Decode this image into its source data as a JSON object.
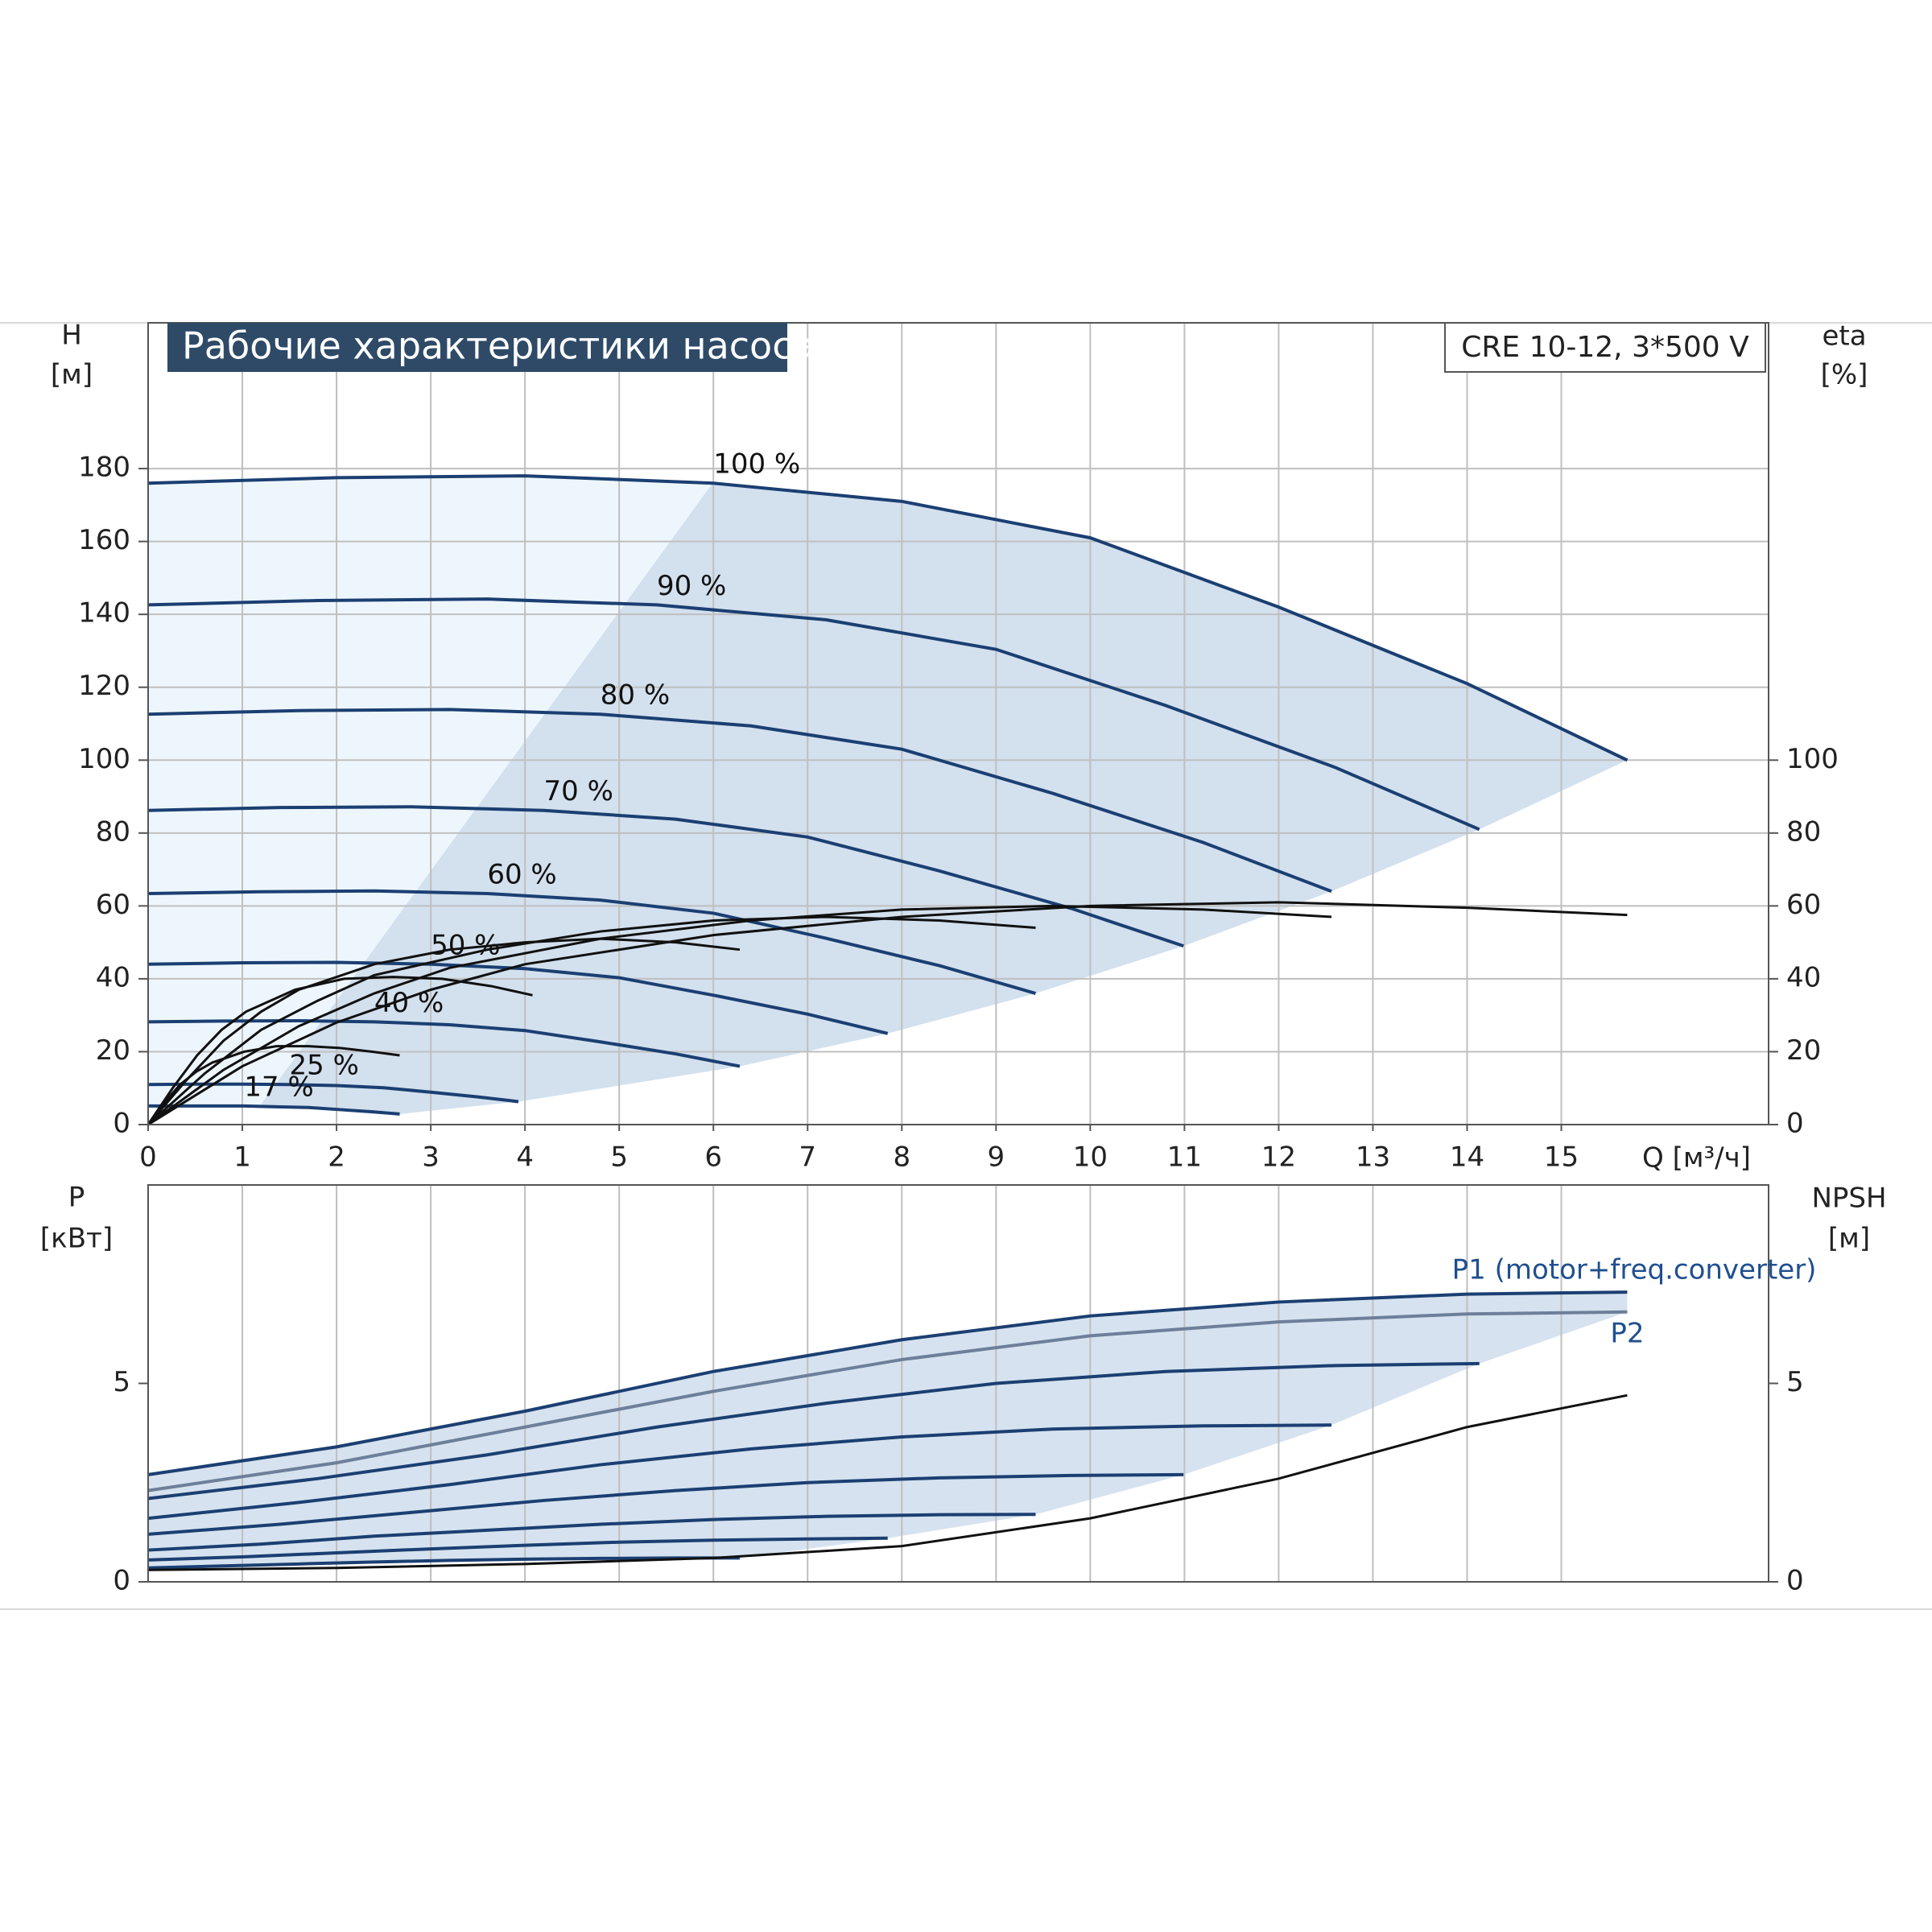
{
  "chart_data": [
    {
      "type": "line",
      "title": "Рабочие характеристики насоса",
      "subtitle": "CRE 10-12, 3*500 V",
      "xlabel": "Q [м³/ч]",
      "ylabel": "H",
      "yunit": "[м]",
      "y2label": "eta",
      "y2unit": "[%]",
      "xlim": [
        0,
        17.2
      ],
      "xticks": [
        0,
        1,
        2,
        3,
        4,
        5,
        6,
        7,
        8,
        9,
        10,
        11,
        12,
        13,
        14,
        15
      ],
      "ylim": [
        0,
        220
      ],
      "yticks": [
        0,
        20,
        40,
        60,
        80,
        100,
        120,
        140,
        160,
        180
      ],
      "y2lim": [
        0,
        220
      ],
      "y2ticks": [
        0,
        20,
        40,
        60,
        80,
        100
      ],
      "grid": true,
      "series": [
        {
          "name": "100 %",
          "color": "#1b3f72",
          "x": [
            0,
            2,
            4,
            6,
            8,
            10,
            12,
            14,
            15.7
          ],
          "values": [
            176,
            177.5,
            178,
            176,
            171,
            161,
            142,
            121,
            100
          ]
        },
        {
          "name": "90 %",
          "color": "#1b3f72",
          "x": [
            0,
            1.8,
            3.6,
            5.4,
            7.2,
            9,
            10.8,
            12.6,
            14.13
          ],
          "values": [
            142.6,
            143.8,
            144.2,
            142.6,
            138.5,
            130.4,
            115,
            98,
            81
          ]
        },
        {
          "name": "80 %",
          "color": "#1b3f72",
          "x": [
            0,
            1.6,
            3.2,
            4.8,
            6.4,
            8,
            9.6,
            11.2,
            12.56
          ],
          "values": [
            112.6,
            113.6,
            113.9,
            112.6,
            109.4,
            103,
            90.9,
            77.4,
            64
          ]
        },
        {
          "name": "70 %",
          "color": "#1b3f72",
          "x": [
            0,
            1.4,
            2.8,
            4.2,
            5.6,
            7,
            8.4,
            9.8,
            10.99
          ],
          "values": [
            86.2,
            87,
            87.2,
            86.2,
            83.8,
            78.9,
            69.6,
            59.3,
            49
          ]
        },
        {
          "name": "60 %",
          "color": "#1b3f72",
          "x": [
            0,
            1.2,
            2.4,
            3.6,
            4.8,
            6,
            7.2,
            8.4,
            9.42
          ],
          "values": [
            63.4,
            63.9,
            64.1,
            63.4,
            61.6,
            58,
            51.1,
            43.6,
            36
          ]
        },
        {
          "name": "50 %",
          "color": "#1b3f72",
          "x": [
            0,
            1,
            2,
            3,
            4,
            5,
            6,
            7,
            7.85
          ],
          "values": [
            44,
            44.4,
            44.5,
            44,
            42.8,
            40.3,
            35.5,
            30.3,
            25
          ]
        },
        {
          "name": "40 %",
          "color": "#1b3f72",
          "x": [
            0,
            0.8,
            1.6,
            2.4,
            3.2,
            4,
            4.8,
            5.6,
            6.28
          ],
          "values": [
            28.2,
            28.4,
            28.5,
            28.2,
            27.4,
            25.8,
            22.7,
            19.4,
            16
          ]
        },
        {
          "name": "25 %",
          "color": "#1b3f72",
          "x": [
            0,
            0.5,
            1,
            1.5,
            2,
            2.5,
            3,
            3.5,
            3.93
          ],
          "values": [
            11,
            11.1,
            11.1,
            11,
            10.7,
            10.1,
            8.9,
            7.6,
            6.3
          ]
        },
        {
          "name": "17 %",
          "color": "#1b3f72",
          "x": [
            0,
            0.34,
            0.68,
            1.02,
            1.36,
            1.7,
            2.04,
            2.38,
            2.67
          ],
          "values": [
            5.1,
            5.1,
            5.1,
            5.1,
            4.9,
            4.7,
            4.1,
            3.5,
            2.9
          ]
        },
        {
          "color": "#111111",
          "axis": "y2",
          "x": [
            0,
            1,
            2,
            3,
            4,
            6,
            8,
            10,
            12,
            14,
            15.7
          ],
          "values": [
            0,
            16,
            28,
            37,
            44,
            52,
            57,
            60,
            61,
            59.5,
            57.5
          ]
        },
        {
          "color": "#111111",
          "axis": "y2",
          "x": [
            0,
            0.8,
            1.6,
            2.4,
            3.2,
            4.8,
            6.4,
            8,
            9.6,
            11.2,
            12.56
          ],
          "values": [
            0,
            15,
            27,
            36,
            43,
            51,
            56,
            59,
            60,
            59,
            57
          ]
        },
        {
          "color": "#111111",
          "axis": "y2",
          "x": [
            0,
            0.6,
            1.2,
            1.8,
            2.4,
            3.6,
            4.8,
            6,
            7.2,
            8.4,
            9.42
          ],
          "values": [
            0,
            14,
            26,
            34,
            41,
            48,
            53,
            56,
            57,
            56,
            54
          ]
        },
        {
          "color": "#111111",
          "axis": "y2",
          "x": [
            0,
            0.4,
            0.8,
            1.2,
            1.6,
            2.4,
            3.2,
            4,
            4.8,
            5.6,
            6.28
          ],
          "values": [
            0,
            12,
            23,
            31,
            37,
            44,
            48,
            50,
            51,
            50,
            48
          ]
        },
        {
          "color": "#111111",
          "axis": "y2",
          "x": [
            0,
            0.26,
            0.52,
            0.78,
            1.04,
            1.56,
            2.08,
            2.6,
            3.12,
            3.64,
            4.08
          ],
          "values": [
            0,
            10,
            19,
            26,
            31,
            37,
            40,
            40.5,
            40,
            38,
            35.5
          ]
        },
        {
          "color": "#111111",
          "axis": "y2",
          "x": [
            0,
            0.17,
            0.34,
            0.51,
            0.68,
            1.02,
            1.36,
            1.7,
            2.04,
            2.38,
            2.67
          ],
          "values": [
            0,
            6,
            11,
            14.5,
            17,
            20,
            21.5,
            21.5,
            21,
            20,
            19
          ]
        }
      ]
    },
    {
      "type": "line",
      "ylabel": "P",
      "yunit": "[кВт]",
      "y2label": "NPSH",
      "y2unit": "[м]",
      "xlim": [
        0,
        17.2
      ],
      "ylim": [
        0,
        10
      ],
      "yticks": [
        0,
        5
      ],
      "y2lim": [
        0,
        10
      ],
      "y2ticks": [
        0,
        5
      ],
      "series": [
        {
          "name": "P1 (motor+freq.converter)",
          "color": "#1b3f72",
          "x": [
            0,
            2,
            4,
            6,
            8,
            10,
            12,
            14,
            15.7
          ],
          "values": [
            2.7,
            3.4,
            4.3,
            5.3,
            6.1,
            6.7,
            7.05,
            7.25,
            7.3
          ]
        },
        {
          "name": "P2",
          "color": "#6d7f99",
          "x": [
            0,
            2,
            4,
            6,
            8,
            10,
            12,
            14,
            15.7
          ],
          "values": [
            2.3,
            3,
            3.9,
            4.8,
            5.6,
            6.2,
            6.55,
            6.75,
            6.8
          ]
        },
        {
          "color": "#1b3f72",
          "x": [
            0,
            1.8,
            3.6,
            5.4,
            7.2,
            9,
            10.8,
            12.6,
            14.13
          ],
          "values": [
            2.1,
            2.6,
            3.2,
            3.9,
            4.5,
            5,
            5.3,
            5.45,
            5.5
          ]
        },
        {
          "color": "#1b3f72",
          "x": [
            0,
            1.6,
            3.2,
            4.8,
            6.4,
            8,
            9.6,
            11.2,
            12.56
          ],
          "values": [
            1.6,
            2,
            2.45,
            2.95,
            3.35,
            3.65,
            3.85,
            3.93,
            3.95
          ]
        },
        {
          "color": "#1b3f72",
          "x": [
            0,
            1.4,
            2.8,
            4.2,
            5.6,
            7,
            8.4,
            9.8,
            10.99
          ],
          "values": [
            1.2,
            1.45,
            1.75,
            2.05,
            2.3,
            2.5,
            2.62,
            2.68,
            2.7
          ]
        },
        {
          "color": "#1b3f72",
          "x": [
            0,
            1.2,
            2.4,
            3.6,
            4.8,
            6,
            7.2,
            8.4,
            9.42
          ],
          "values": [
            0.8,
            0.95,
            1.15,
            1.3,
            1.45,
            1.57,
            1.65,
            1.69,
            1.7
          ]
        },
        {
          "color": "#1b3f72",
          "x": [
            0,
            1,
            2,
            3,
            4,
            5,
            6,
            7,
            7.85
          ],
          "values": [
            0.55,
            0.63,
            0.73,
            0.83,
            0.92,
            1,
            1.05,
            1.08,
            1.1
          ]
        },
        {
          "color": "#1b3f72",
          "x": [
            0,
            0.8,
            1.6,
            2.4,
            3.2,
            4,
            4.8,
            5.6,
            6.28
          ],
          "values": [
            0.35,
            0.4,
            0.45,
            0.5,
            0.54,
            0.57,
            0.59,
            0.6,
            0.6
          ]
        },
        {
          "color": "#111111",
          "axis": "y2",
          "x": [
            0,
            2,
            4,
            6,
            8,
            10,
            12,
            14,
            15.7
          ],
          "values": [
            0.3,
            0.35,
            0.45,
            0.6,
            0.9,
            1.6,
            2.6,
            3.9,
            4.7
          ]
        }
      ]
    }
  ]
}
